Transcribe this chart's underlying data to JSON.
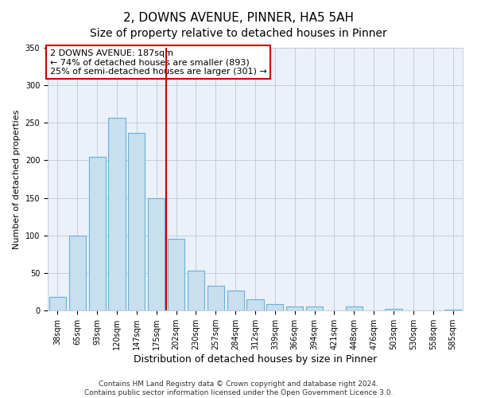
{
  "title": "2, DOWNS AVENUE, PINNER, HA5 5AH",
  "subtitle": "Size of property relative to detached houses in Pinner",
  "xlabel": "Distribution of detached houses by size in Pinner",
  "ylabel": "Number of detached properties",
  "bar_labels": [
    "38sqm",
    "65sqm",
    "93sqm",
    "120sqm",
    "147sqm",
    "175sqm",
    "202sqm",
    "230sqm",
    "257sqm",
    "284sqm",
    "312sqm",
    "339sqm",
    "366sqm",
    "394sqm",
    "421sqm",
    "448sqm",
    "476sqm",
    "503sqm",
    "530sqm",
    "558sqm",
    "585sqm"
  ],
  "bar_values": [
    18,
    100,
    205,
    257,
    237,
    150,
    95,
    53,
    33,
    27,
    15,
    8,
    5,
    5,
    0,
    5,
    0,
    2,
    0,
    0,
    1
  ],
  "bar_color": "#c8dff0",
  "bar_edge_color": "#6aafd6",
  "plot_bg_color": "#eaf1f8",
  "vline_x": 5.5,
  "vline_color": "#cc0000",
  "annotation_text": "2 DOWNS AVENUE: 187sqm\n← 74% of detached houses are smaller (893)\n25% of semi-detached houses are larger (301) →",
  "annotation_box_color": "#ffffff",
  "annotation_box_edgecolor": "#cc0000",
  "ylim": [
    0,
    350
  ],
  "yticks": [
    0,
    50,
    100,
    150,
    200,
    250,
    300,
    350
  ],
  "footer_line1": "Contains HM Land Registry data © Crown copyright and database right 2024.",
  "footer_line2": "Contains public sector information licensed under the Open Government Licence 3.0.",
  "title_fontsize": 11,
  "xlabel_fontsize": 9,
  "ylabel_fontsize": 8,
  "tick_fontsize": 7,
  "footer_fontsize": 6.5,
  "annotation_fontsize": 8
}
